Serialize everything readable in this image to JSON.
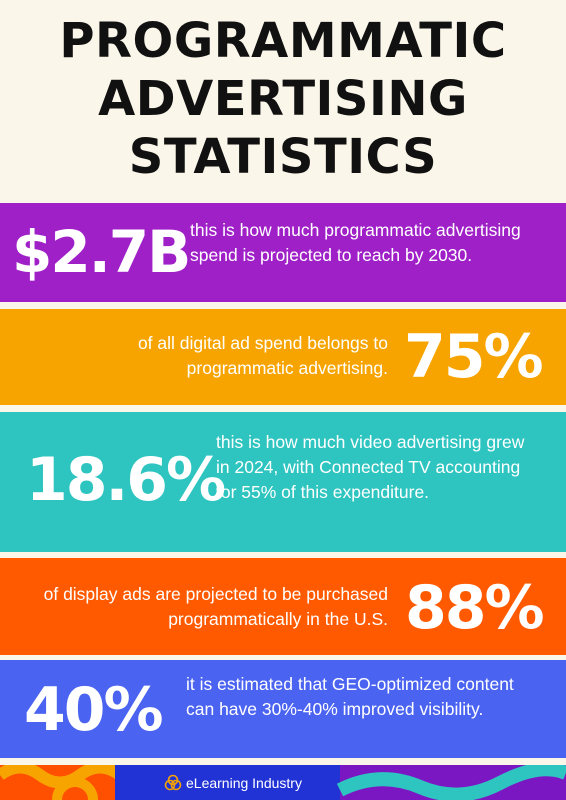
{
  "title": {
    "line1": "PROGRAMMATIC",
    "line2": "ADVERTISING",
    "line3": "STATISTICS"
  },
  "stats": [
    {
      "value": "$2.7B",
      "text": "this is how much programmatic advertising spend is projected to reach by 2030.",
      "color": "#a020c8"
    },
    {
      "value": "75%",
      "text": "of all digital ad spend belongs to programmatic advertising.",
      "color": "#f7a400"
    },
    {
      "value": "18.6%",
      "text": "this is how much video advertising grew in 2024, with Connected TV accounting for 55% of this expenditure.",
      "color": "#2ec4c0"
    },
    {
      "value": "88%",
      "text": "of display ads are projected to be purchased programmatically in the U.S.",
      "color": "#ff5a00"
    },
    {
      "value": "40%",
      "text": "it is estimated that GEO-optimized content can have 30%-40% improved visibility.",
      "color": "#4a63f0"
    }
  ],
  "footer": {
    "brand": "eLearning Industry",
    "logo_icon": "triple-ring-logo-icon"
  }
}
